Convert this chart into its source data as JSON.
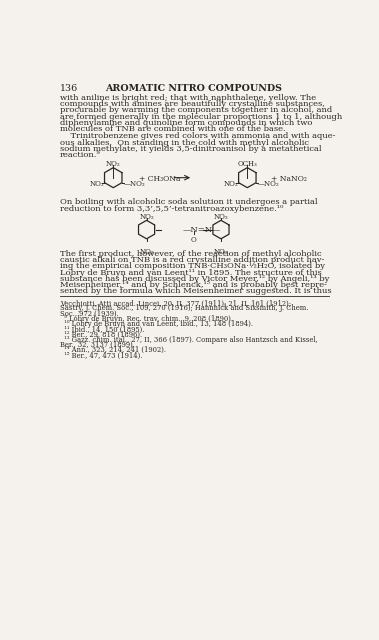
{
  "bg_color": "#f5f2ee",
  "text_color": "#2a2520",
  "page_num": "136",
  "header": "AROMATIC NITRO COMPOUNDS",
  "body1_lines": [
    "with aniline is bright red; that with naphthalene, yellow. The",
    "compounds with amines are beautifully crystalline substances,",
    "procurable by warming the components together in alcohol, and",
    "are formed generally in the molecular proportions 1 to 1, although",
    "diphenylamine and quinoline form compounds in which two",
    "molecules of TNB are combined with one of the base."
  ],
  "body2_lines": [
    "    Trinitrobenzene gives red colors with ammonia and with aque-",
    "ous alkalies.  On standing in the cold with methyl alcoholic",
    "sodium methylate, it yields 3,5-dinitroanisol by a metathetical",
    "reaction.⁹"
  ],
  "body3_lines": [
    "On boiling with alcoholic soda solution it undergoes a partial",
    "reduction to form 3,3’,5,5’-tetranitroazoxybenzene.¹⁰"
  ],
  "body4_lines": [
    "The first product, however, of the reaction of methyl alcoholic",
    "caustic alkali on TNB is a red crystalline addition product hav-",
    "ing the empirical composition TNB·CH₃ONa·½H₂O, isolated by",
    "Lobry de Bruyn and van Leent¹¹ in 1895. The structure of this",
    "substance has been discussed by Victor Meyer,¹² by Angeli,¹³ by",
    "Meisenheimer,¹⁴ and by Schlenck,¹⁵ and is probably best repre-",
    "sented by the formula which Meisenheimer suggested. It is thus"
  ],
  "fn_lines": [
    "Vecchiotti, Atti accad. Lincei, 20, II, 377 (1911); 21, II, 161 (1912);",
    "Sastry, J. Chem. Soc., 109, 270 (1916); Hannnick and Sixsmith, J. Chem.",
    "Soc., 972 (1939).",
    "  ⁹ Lobry de Bruyn, Rec. trav. chim., 9, 208 (1890).",
    "  ¹⁰ Lobry de Bruyn and van Leent, ibid., 13, 148 (1894).",
    "  ¹¹ Ibid., 14, 150 (1895).",
    "  ¹² Ber., 29, 818 (1896).",
    "  ¹³ Gazz. chim. ital., 27, II, 366 (1897). Compare also Hantzsch and Kissel,",
    "Ber., 32, 3137 (1899).",
    "  ¹⁴ Ann., 323, 214, 241 (1902).",
    "  ¹⁵ Ber., 47, 473 (1914)."
  ]
}
